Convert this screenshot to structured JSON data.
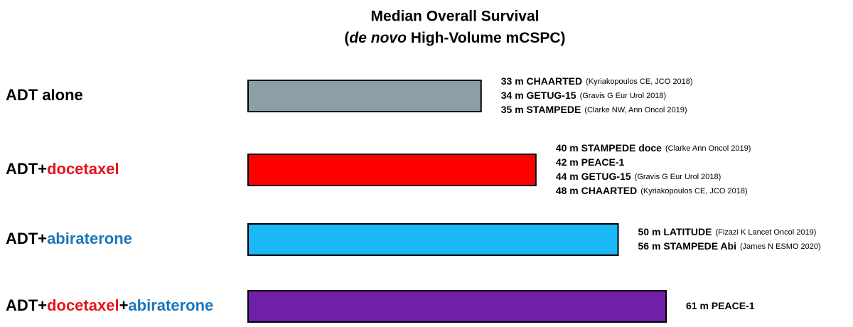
{
  "chart_data": {
    "type": "bar",
    "orientation": "horizontal",
    "title": "Median Overall Survival",
    "subtitle_parts": [
      {
        "text": "(",
        "italic": false
      },
      {
        "text": "de novo",
        "italic": true
      },
      {
        "text": " High-Volume mCSPC)",
        "italic": false
      }
    ],
    "category_parts": [
      [
        {
          "text": "ADT alone",
          "color": "#000000"
        }
      ],
      [
        {
          "text": "ADT+",
          "color": "#000000"
        },
        {
          "text": "docetaxel",
          "color": "#e8141c"
        }
      ],
      [
        {
          "text": "ADT+",
          "color": "#000000"
        },
        {
          "text": "abiraterone",
          "color": "#1b75bb"
        }
      ],
      [
        {
          "text": "ADT+",
          "color": "#000000"
        },
        {
          "text": "docetaxel",
          "color": "#e8141c"
        },
        {
          "text": "+",
          "color": "#000000"
        },
        {
          "text": "abiraterone",
          "color": "#1b75bb"
        }
      ]
    ],
    "values": [
      34,
      42,
      54,
      61
    ],
    "colors": [
      "#8c9ea7",
      "#ff0000",
      "#1ab8f5",
      "#7020a8"
    ],
    "annotations": [
      [
        {
          "text": "33 m CHAARTED",
          "ref": "(Kyriakopoulos CE, JCO 2018)"
        },
        {
          "text": "34 m GETUG-15",
          "ref": "(Gravis G Eur Urol 2018)"
        },
        {
          "text": "35 m STAMPEDE",
          "ref": "(Clarke NW, Ann Oncol 2019)"
        }
      ],
      [
        {
          "text": "40 m STAMPEDE doce",
          "ref": "(Clarke Ann Oncol 2019)"
        },
        {
          "text": "42 m PEACE-1"
        },
        {
          "text": "44 m GETUG-15",
          "ref": "(Gravis G Eur Urol 2018)"
        },
        {
          "text": "48 m CHAARTED",
          "ref": "(Kyriakopoulos CE, JCO 2018)"
        }
      ],
      [
        {
          "text": "50 m LATITUDE",
          "ref": "(Fizazi K Lancet Oncol 2019)"
        },
        {
          "text": "56 m STAMPEDE Abi",
          "ref": "(James N ESMO 2020)"
        }
      ],
      [
        {
          "text": "61 m PEACE-1"
        }
      ]
    ]
  }
}
